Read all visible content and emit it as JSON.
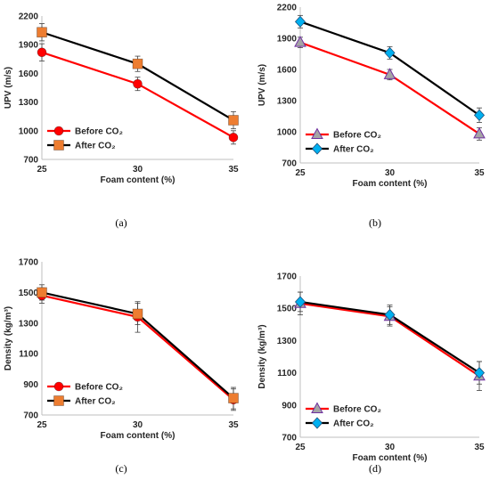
{
  "chart_data": [
    {
      "type": "line",
      "caption": "(a)",
      "x": [
        25,
        30,
        35
      ],
      "xlim": [
        25,
        35
      ],
      "ylim": [
        700,
        2200
      ],
      "yticks": [
        700,
        1000,
        1300,
        1600,
        1900,
        2200
      ],
      "xlabel": "Foam content (%)",
      "ylabel": "UPV (m/s)",
      "legend_position": "bottom-left",
      "series": [
        {
          "name": "Before CO₂",
          "values": [
            1820,
            1490,
            930
          ],
          "errors": [
            90,
            70,
            70
          ],
          "color": "#ff0000",
          "marker": "circle",
          "marker_color": "#ff0000"
        },
        {
          "name": "After CO₂",
          "values": [
            2030,
            1700,
            1110
          ],
          "errors": [
            90,
            80,
            90
          ],
          "color": "#000000",
          "marker": "square",
          "marker_color": "#ed7d31"
        }
      ]
    },
    {
      "type": "line",
      "caption": "(b)",
      "x": [
        25,
        30,
        35
      ],
      "xlim": [
        25,
        35
      ],
      "ylim": [
        700,
        2200
      ],
      "yticks": [
        700,
        1000,
        1300,
        1600,
        1900,
        2200
      ],
      "xlabel": "Foam content (%)",
      "ylabel": "UPV (m/s)",
      "legend_position": "bottom-left",
      "series": [
        {
          "name": "Before CO₂",
          "values": [
            1860,
            1550,
            980
          ],
          "errors": [
            50,
            50,
            60
          ],
          "color": "#ff0000",
          "marker": "triangle",
          "marker_color": "#a5a5a5"
        },
        {
          "name": "After CO₂",
          "values": [
            2060,
            1760,
            1160
          ],
          "errors": [
            60,
            60,
            70
          ],
          "color": "#000000",
          "marker": "diamond",
          "marker_color": "#00b0f0"
        }
      ]
    },
    {
      "type": "line",
      "caption": "(c)",
      "x": [
        25,
        30,
        35
      ],
      "xlim": [
        25,
        35
      ],
      "ylim": [
        700,
        1700
      ],
      "yticks": [
        700,
        900,
        1100,
        1300,
        1500,
        1700
      ],
      "xlabel": "Foam content (%)",
      "ylabel": "Density (kg/m³)",
      "legend_position": "bottom-left",
      "series": [
        {
          "name": "Before CO₂",
          "values": [
            1480,
            1340,
            800
          ],
          "errors": [
            50,
            100,
            70
          ],
          "color": "#ff0000",
          "marker": "circle",
          "marker_color": "#ff0000"
        },
        {
          "name": "After CO₂",
          "values": [
            1500,
            1360,
            810
          ],
          "errors": [
            50,
            70,
            70
          ],
          "color": "#000000",
          "marker": "square",
          "marker_color": "#ed7d31"
        }
      ]
    },
    {
      "type": "line",
      "caption": "(d)",
      "x": [
        25,
        30,
        35
      ],
      "xlim": [
        25,
        35
      ],
      "ylim": [
        700,
        1700
      ],
      "yticks": [
        700,
        900,
        1100,
        1300,
        1500,
        1700
      ],
      "xlabel": "Foam content (%)",
      "ylabel": "Density (kg/m³)",
      "legend_position": "bottom-left",
      "series": [
        {
          "name": "Before CO₂",
          "values": [
            1530,
            1450,
            1080
          ],
          "errors": [
            70,
            60,
            90
          ],
          "color": "#ff0000",
          "marker": "triangle",
          "marker_color": "#a5a5a5"
        },
        {
          "name": "After CO₂",
          "values": [
            1540,
            1460,
            1100
          ],
          "errors": [
            60,
            60,
            70
          ],
          "color": "#000000",
          "marker": "diamond",
          "marker_color": "#00b0f0"
        }
      ]
    }
  ]
}
